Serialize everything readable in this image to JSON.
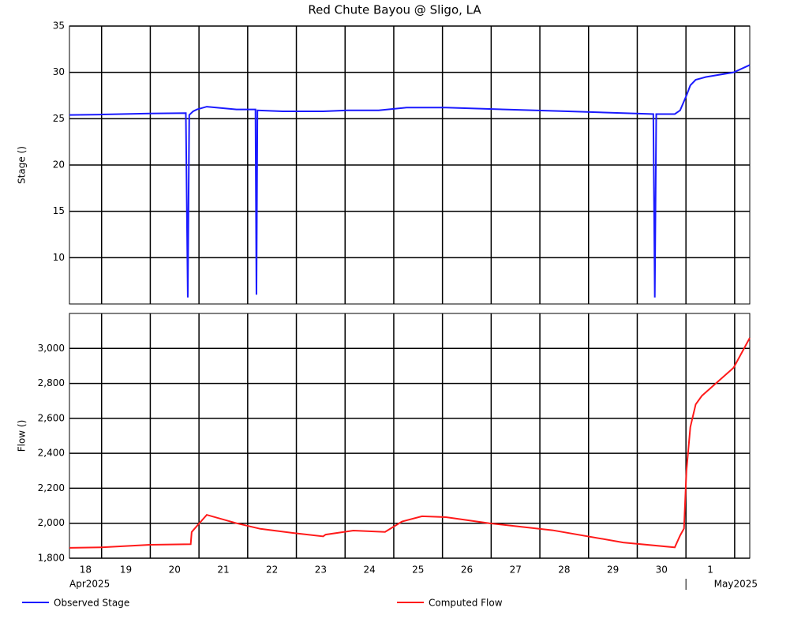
{
  "chart_data": [
    {
      "type": "line",
      "title": "Red Chute Bayou @ Sligo, LA",
      "y_label": "Stage ()",
      "xlim": [
        18.34,
        32.31
      ],
      "xticks": [
        19,
        20,
        21,
        22,
        23,
        24,
        25,
        26,
        27,
        28,
        29,
        30,
        31,
        32
      ],
      "ylim": [
        5,
        35
      ],
      "yticks": [
        10,
        15,
        20,
        25,
        30,
        35
      ],
      "grid": true,
      "x": [
        18.34,
        19,
        19.99,
        20.73,
        20.77,
        20.8,
        20.88,
        20.96,
        21.16,
        21.77,
        22.16,
        22.18,
        22.2,
        22.72,
        23.55,
        24.05,
        24.69,
        25.26,
        26.07,
        27.28,
        28.58,
        29.71,
        30.33,
        30.36,
        30.39,
        30.77,
        30.88,
        31.01,
        31.09,
        31.2,
        31.41,
        31.98,
        32.31
      ],
      "series": [
        {
          "name": "Observed Stage",
          "color": "#1a1aff",
          "values": [
            25.4,
            25.45,
            25.56,
            25.6,
            5.7,
            25.4,
            25.8,
            26.0,
            26.3,
            26.0,
            26.0,
            6.0,
            25.9,
            25.8,
            25.8,
            25.9,
            25.9,
            26.2,
            26.2,
            26.0,
            25.8,
            25.6,
            25.5,
            5.7,
            25.5,
            25.5,
            25.9,
            27.5,
            28.6,
            29.2,
            29.5,
            30.0,
            30.8
          ]
        }
      ]
    },
    {
      "type": "line",
      "y_label": "Flow ()",
      "xlim": [
        18.34,
        32.31
      ],
      "xticks": [
        19,
        20,
        21,
        22,
        23,
        24,
        25,
        26,
        27,
        28,
        29,
        30,
        31,
        32
      ],
      "day_labels": [
        18,
        19,
        20,
        21,
        22,
        23,
        24,
        25,
        26,
        27,
        28,
        29,
        30,
        {
          "value": 31,
          "label": "1"
        }
      ],
      "month_labels": [
        "Apr2025",
        "May2025"
      ],
      "month_ticks": [
        31
      ],
      "ylim": [
        1800,
        3200
      ],
      "yticks": [
        {
          "value": 1800,
          "label": "1,800"
        },
        {
          "value": 2000,
          "label": "2,000"
        },
        {
          "value": 2200,
          "label": "2,200"
        },
        {
          "value": 2400,
          "label": "2,400"
        },
        {
          "value": 2600,
          "label": "2,600"
        },
        {
          "value": 2800,
          "label": "2,800"
        },
        {
          "value": 3000,
          "label": "3,000"
        }
      ],
      "grid": true,
      "x": [
        18.34,
        19,
        19.99,
        20.83,
        20.85,
        20.96,
        21.16,
        21.77,
        22.26,
        22.91,
        23.55,
        23.6,
        24.17,
        24.82,
        25.17,
        25.58,
        26.07,
        26.96,
        28.26,
        29.71,
        30.77,
        30.88,
        30.96,
        31.01,
        31.09,
        31.2,
        31.33,
        31.98,
        32.31
      ],
      "series": [
        {
          "name": "Computed Flow",
          "color": "#ff1a1a",
          "values": [
            1859,
            1862,
            1877,
            1880,
            1950,
            1985,
            2048,
            2000,
            1968,
            1945,
            1925,
            1935,
            1958,
            1950,
            2010,
            2040,
            2035,
            2000,
            1960,
            1890,
            1862,
            1930,
            1970,
            2300,
            2550,
            2680,
            2730,
            2890,
            3060
          ]
        }
      ]
    }
  ]
}
